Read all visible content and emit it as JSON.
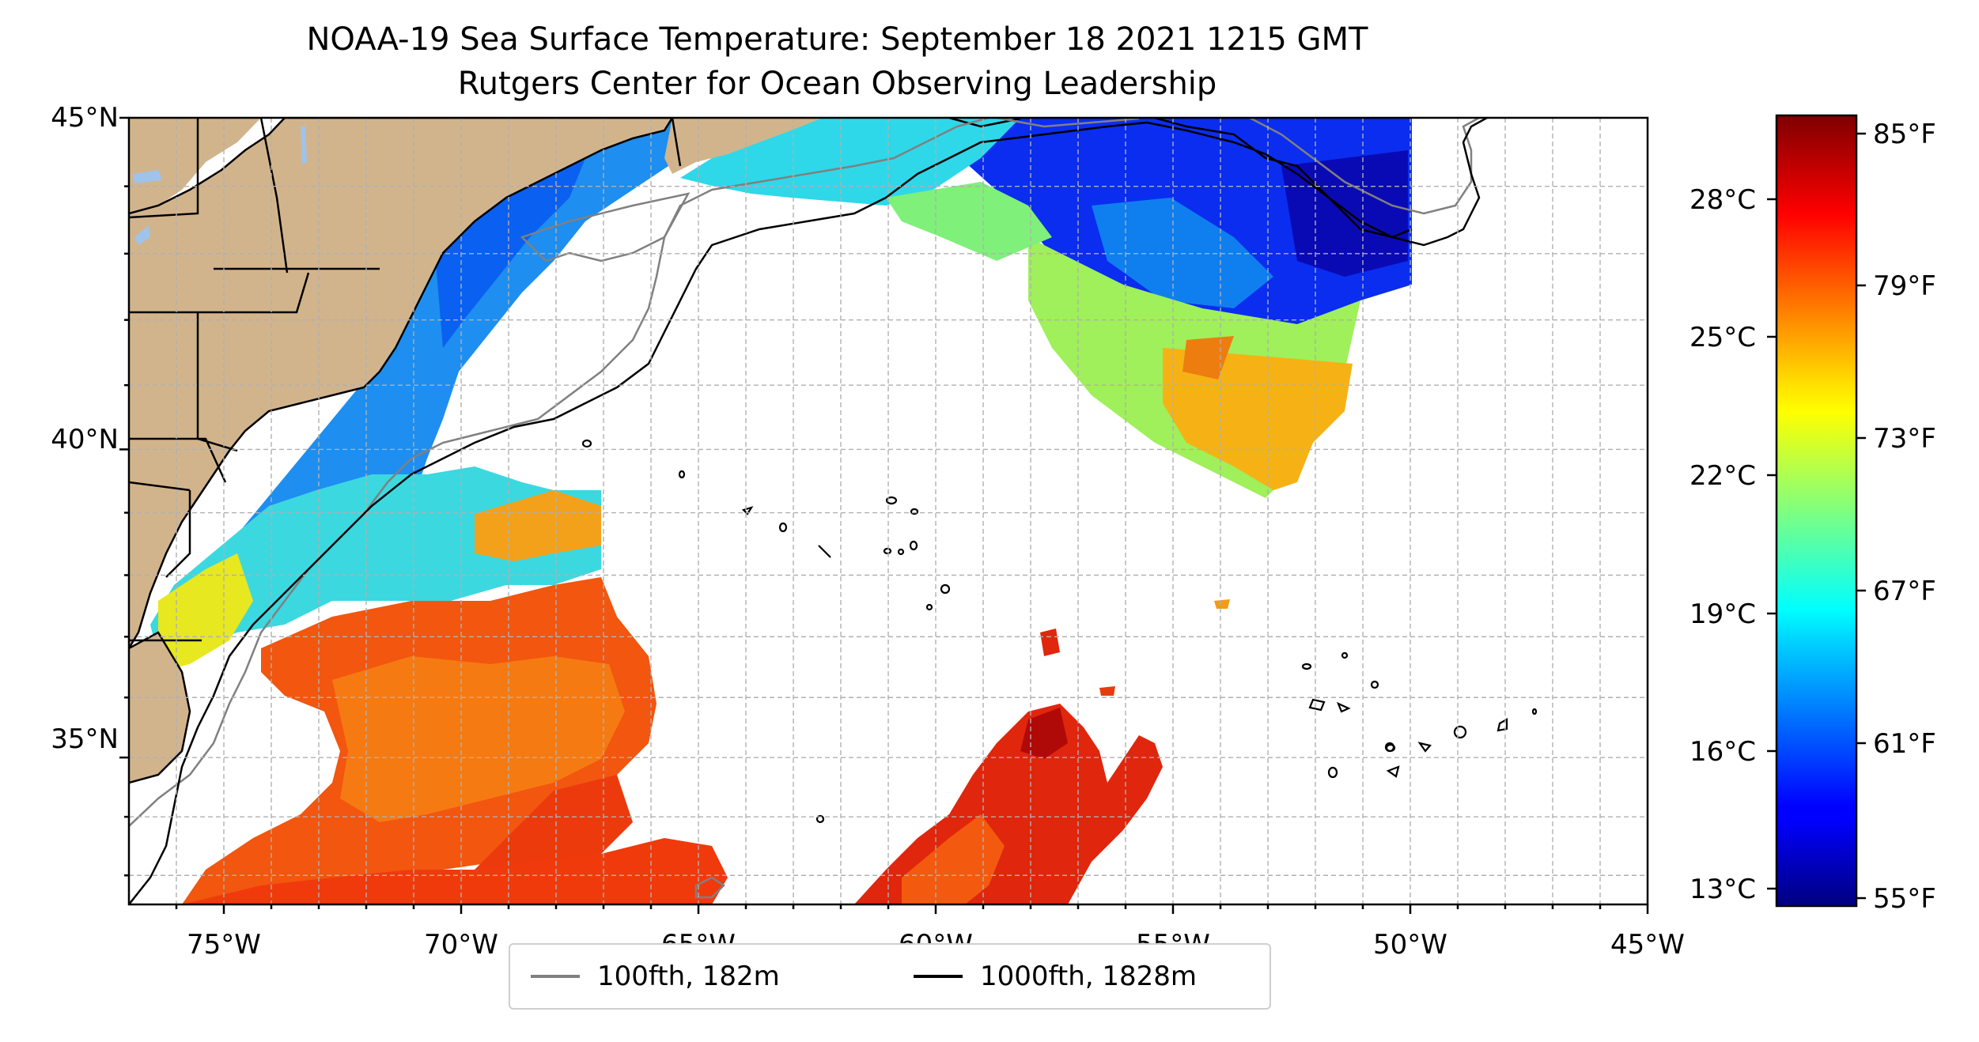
{
  "title": {
    "line1": "NOAA-19 Sea Surface Temperature: September 18 2021 1215 GMT",
    "line2": "Rutgers Center for Ocean Observing Leadership"
  },
  "map": {
    "lon_range": [
      -77,
      -45
    ],
    "lat_range": [
      32.5,
      45
    ],
    "x_ticks": [
      "75°W",
      "70°W",
      "65°W",
      "60°W",
      "55°W",
      "50°W",
      "45°W"
    ],
    "y_ticks": [
      "45°N",
      "40°N",
      "35°N"
    ],
    "grid": true,
    "land_color": "#d2b48c",
    "lake_color": "#9fc3ea",
    "ocean_missing_color": "#ffffff"
  },
  "colorbar": {
    "colormap": "jet",
    "celsius_ticks": [
      "28°C",
      "25°C",
      "22°C",
      "19°C",
      "16°C",
      "13°C"
    ],
    "fahrenheit_ticks": [
      "85°F",
      "79°F",
      "73°F",
      "67°F",
      "61°F",
      "55°F"
    ]
  },
  "legend": {
    "items": [
      {
        "label": "100fth, 182m",
        "color": "#808080"
      },
      {
        "label": "1000fth, 1828m",
        "color": "#000000"
      }
    ]
  }
}
